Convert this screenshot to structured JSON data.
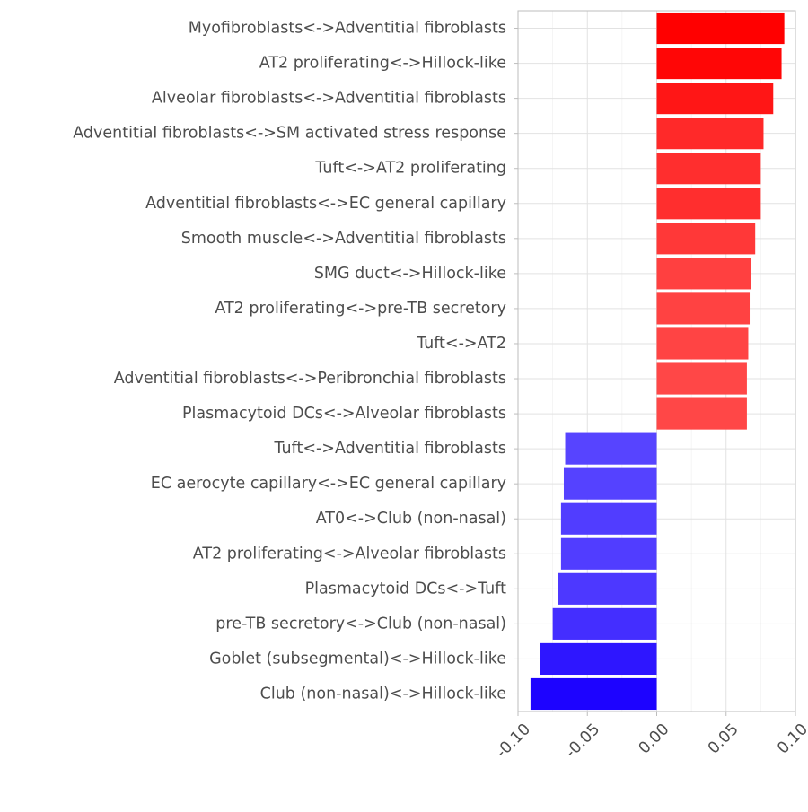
{
  "chart_data": {
    "type": "bar",
    "orientation": "horizontal",
    "title": "",
    "xlabel": "",
    "ylabel": "",
    "xlim": [
      -0.1,
      0.1
    ],
    "x_ticks": [
      -0.1,
      -0.05,
      0.0,
      0.05,
      0.1
    ],
    "x_tick_labels": [
      "-0.10",
      "-0.05",
      "0.00",
      "0.05",
      "0.10"
    ],
    "grid": true,
    "legend": "none",
    "color_scale": {
      "negative": "#1a00ff",
      "neutral": "#ffffff",
      "positive": "#ff0000"
    },
    "categories": [
      "Myofibroblasts<->Adventitial fibroblasts",
      "AT2 proliferating<->Hillock-like",
      "Alveolar fibroblasts<->Adventitial fibroblasts",
      "Adventitial fibroblasts<->SM activated stress response",
      "Tuft<->AT2 proliferating",
      "Adventitial fibroblasts<->EC general capillary",
      "Smooth muscle<->Adventitial fibroblasts",
      "SMG duct<->Hillock-like",
      "AT2 proliferating<->pre-TB secretory",
      "Tuft<->AT2",
      "Adventitial fibroblasts<->Peribronchial fibroblasts",
      "Plasmacytoid DCs<->Alveolar fibroblasts",
      "Tuft<->Adventitial fibroblasts",
      "EC aerocyte capillary<->EC general capillary",
      "AT0<->Club (non-nasal)",
      "AT2 proliferating<->Alveolar fibroblasts",
      "Plasmacytoid DCs<->Tuft",
      "pre-TB secretory<->Club (non-nasal)",
      "Goblet (subsegmental)<->Hillock-like",
      "Club (non-nasal)<->Hillock-like"
    ],
    "values": [
      0.092,
      0.09,
      0.084,
      0.077,
      0.075,
      0.075,
      0.071,
      0.068,
      0.067,
      0.066,
      0.065,
      0.065,
      -0.066,
      -0.067,
      -0.069,
      -0.069,
      -0.071,
      -0.075,
      -0.084,
      -0.091
    ]
  }
}
